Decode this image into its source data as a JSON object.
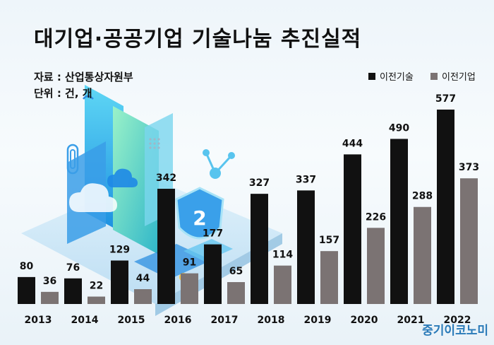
{
  "title": "대기업·공공기업 기술나눔 추진실적",
  "source_label": "자료 : 산업통상자원부",
  "unit_label": "단위 : 건, 개",
  "brand": "중기이코노미",
  "colors": {
    "transfer_tech": "#111111",
    "transfer_company": "#7b7373",
    "brand": "#2a7ab8"
  },
  "chart_data": {
    "type": "bar",
    "categories": [
      "2013",
      "2014",
      "2015",
      "2016",
      "2017",
      "2018",
      "2019",
      "2020",
      "2021",
      "2022"
    ],
    "series": [
      {
        "name": "이전기술",
        "values": [
          80,
          76,
          129,
          342,
          177,
          327,
          337,
          444,
          490,
          577
        ]
      },
      {
        "name": "이전기업",
        "values": [
          36,
          22,
          44,
          91,
          65,
          114,
          157,
          226,
          288,
          373
        ]
      }
    ],
    "title": "대기업·공공기업 기술나눔 추진실적",
    "ylim": [
      0,
      600
    ],
    "grid": false,
    "legend_position": "top-right"
  }
}
